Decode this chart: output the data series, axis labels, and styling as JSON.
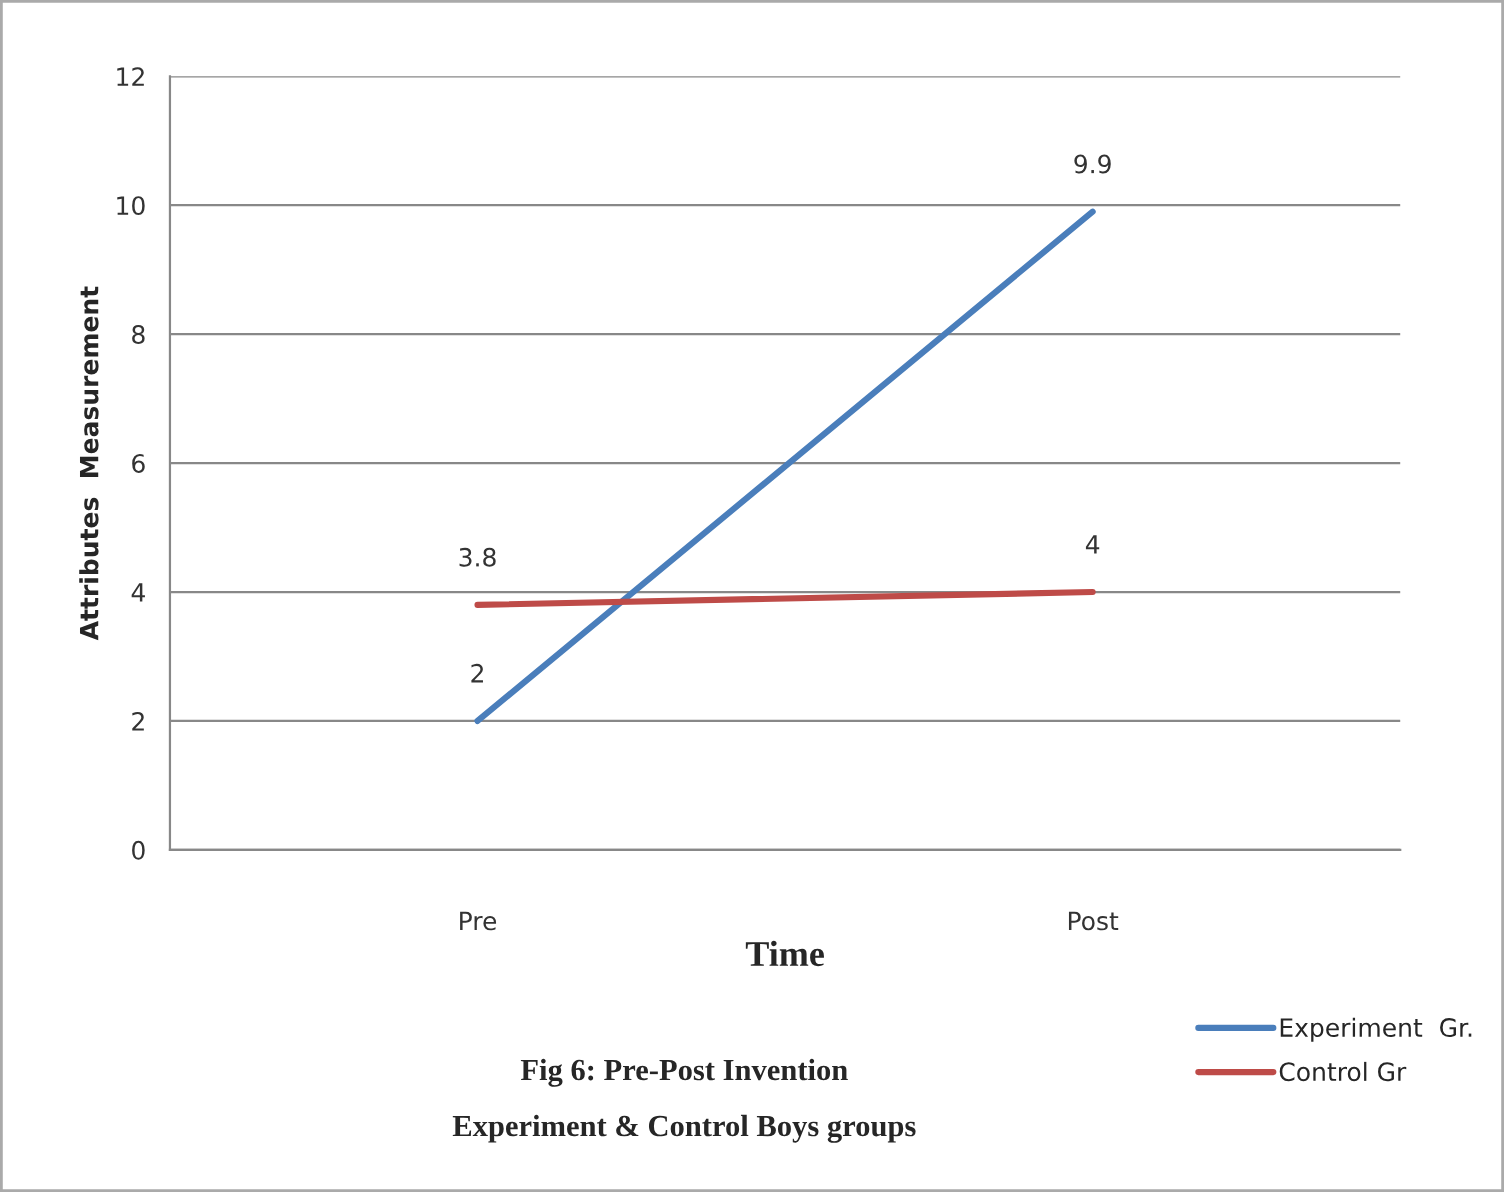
{
  "chart_data": {
    "type": "line",
    "categories": [
      "Pre",
      "Post"
    ],
    "series": [
      {
        "name": "Experiment  Gr.",
        "color": "#4a7ebb",
        "values": [
          2,
          9.9
        ]
      },
      {
        "name": "Control Gr",
        "color": "#be4b48",
        "values": [
          3.8,
          4
        ]
      }
    ],
    "xlabel": "Time",
    "ylabel": "Attributes  Measurement",
    "ylim": [
      0,
      12
    ],
    "yticks": [
      0,
      2,
      4,
      6,
      8,
      10,
      12
    ],
    "grid": "y",
    "data_labels": true,
    "legend": "bottom right",
    "marker": "none",
    "line_style": "solid",
    "annotations": [
      "Fig 6: Pre-Post Invention",
      "Experiment & Control Boys groups"
    ]
  }
}
